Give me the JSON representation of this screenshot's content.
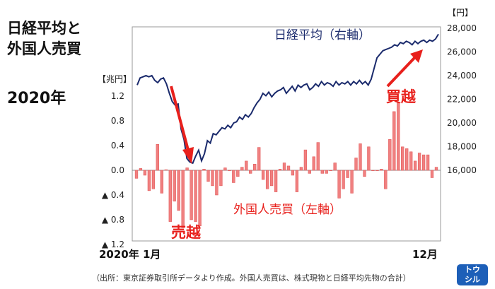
{
  "title": {
    "line1": "日経平均と",
    "line2": "外国人売買"
  },
  "year": "2020年",
  "units": {
    "left": "【兆円】",
    "right": "【円】"
  },
  "annotations": {
    "nikkei": "日経平均（右軸）",
    "foreign": "外国人売買（左軸）",
    "sell": "売越",
    "buy": "買越"
  },
  "x_start_label": "2020年 1月",
  "x_end_label": "12月",
  "source": "（出所：東京証券取引所データより作成。外国人売買は、株式現物と日経平均先物の合計）",
  "logo": {
    "line1": "トウ",
    "line2": "シル"
  },
  "colors": {
    "line": "#1a2a6c",
    "bar": "#f08080",
    "bar_edge": "#e05050",
    "arrow": "#e8201c",
    "annotation_red": "#e8201c"
  },
  "chart_data": {
    "type": "bar+line",
    "x": [
      "2020-01",
      "2020-12"
    ],
    "left_axis": {
      "unit": "兆円",
      "ylim": [
        -1.2,
        1.6
      ],
      "ticks": [
        1.2,
        0.8,
        0.4,
        0.0,
        -0.4,
        -0.8,
        -1.2
      ],
      "tick_labels": [
        "1.2",
        "0.8",
        "0.4",
        "0.0",
        "▲ 0.4",
        "▲ 0.8",
        "▲ 1.2"
      ]
    },
    "right_axis": {
      "unit": "円",
      "ylim": [
        16000,
        28000
      ],
      "ticks": [
        28000,
        26000,
        24000,
        22000,
        20000,
        18000,
        16000
      ],
      "tick_labels": [
        "28,000",
        "26,000",
        "24,000",
        "22,000",
        "20,000",
        "18,000",
        "16,000"
      ]
    },
    "bar_series": {
      "name": "外国人売買（左軸）",
      "values": [
        -0.13,
        0.03,
        -0.08,
        -0.33,
        -0.3,
        0.42,
        -0.37,
        0.01,
        -0.83,
        -0.5,
        -0.65,
        -0.93,
        0.04,
        -0.8,
        -0.83,
        -0.9,
        0.02,
        -0.18,
        -0.25,
        -0.4,
        -0.25,
        0.04,
        0.0,
        -0.2,
        -0.1,
        0.05,
        0.15,
        -0.05,
        0.1,
        0.37,
        -0.15,
        -0.3,
        -0.25,
        -0.35,
        0.02,
        0.12,
        0.07,
        -0.08,
        -0.35,
        0.05,
        0.33,
        -0.05,
        0.22,
        0.45,
        -0.05,
        -0.05,
        0.0,
        0.12,
        -0.45,
        -0.3,
        -0.12,
        -0.37,
        0.2,
        0.43,
        -0.1,
        0.38,
        0.0,
        0.0,
        0.02,
        -0.3,
        0.5,
        0.95,
        1.1,
        0.38,
        0.35,
        0.3,
        0.15,
        0.28,
        0.25,
        0.25,
        -0.12,
        0.05
      ]
    },
    "line_series": {
      "name": "日経平均（右軸）",
      "values": [
        23200,
        23800,
        23900,
        24000,
        23900,
        24000,
        23600,
        23400,
        23700,
        23800,
        23300,
        22500,
        21800,
        21500,
        21600,
        19500,
        18600,
        17000,
        16700,
        16600,
        17200,
        17700,
        16800,
        17400,
        18500,
        18300,
        19100,
        19000,
        19300,
        19600,
        19500,
        19800,
        19600,
        20000,
        20100,
        20500,
        20300,
        20700,
        20500,
        20800,
        21300,
        21700,
        22000,
        22500,
        22300,
        22600,
        22200,
        22500,
        22700,
        22800,
        23000,
        22500,
        22800,
        23100,
        22700,
        23200,
        23000,
        23200,
        23300,
        22800,
        23000,
        23300,
        23100,
        23500,
        23200,
        23400,
        23300,
        23100,
        23500,
        23200,
        23400,
        23300,
        23500,
        23200,
        23500,
        23300,
        23600,
        23300,
        23500,
        23200,
        23700,
        24600,
        25500,
        25800,
        26100,
        26200,
        26300,
        26400,
        26600,
        26500,
        26800,
        26700,
        26900,
        26800,
        26600,
        26900,
        26700,
        26900,
        27000,
        26800,
        27000,
        26900,
        27100,
        27500
      ]
    }
  }
}
